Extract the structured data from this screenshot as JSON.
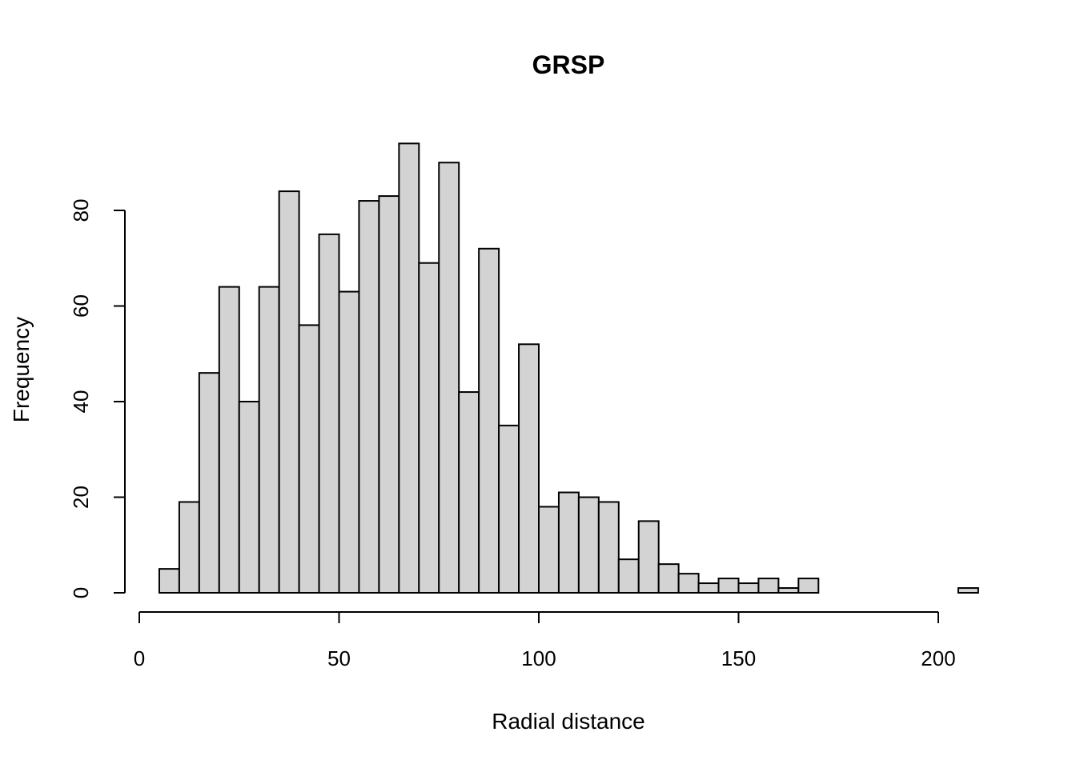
{
  "chart_data": {
    "type": "bar",
    "subtype": "histogram",
    "title": "GRSP",
    "xlabel": "Radial distance",
    "ylabel": "Frequency",
    "bin_width": 5,
    "bin_starts": [
      5,
      10,
      15,
      20,
      25,
      30,
      35,
      40,
      45,
      50,
      55,
      60,
      65,
      70,
      75,
      80,
      85,
      90,
      95,
      100,
      105,
      110,
      115,
      120,
      125,
      130,
      135,
      140,
      145,
      150,
      155,
      160,
      165,
      170,
      175,
      180,
      185,
      190,
      195,
      200,
      205
    ],
    "values": [
      5,
      19,
      46,
      64,
      40,
      64,
      84,
      56,
      75,
      63,
      82,
      83,
      94,
      69,
      90,
      42,
      72,
      35,
      52,
      18,
      21,
      20,
      19,
      7,
      15,
      6,
      4,
      2,
      3,
      2,
      3,
      1,
      3,
      0,
      0,
      0,
      0,
      0,
      0,
      0,
      1
    ],
    "xlim": [
      0,
      210
    ],
    "ylim": [
      0,
      94
    ],
    "xticks": [
      0,
      50,
      100,
      150,
      200
    ],
    "yticks": [
      0,
      20,
      40,
      60,
      80
    ],
    "xtick_labels": [
      "0",
      "50",
      "100",
      "150",
      "200"
    ],
    "ytick_labels": [
      "0",
      "20",
      "40",
      "60",
      "80"
    ],
    "bar_color": "#d3d3d3",
    "edge_color": "#000000"
  }
}
